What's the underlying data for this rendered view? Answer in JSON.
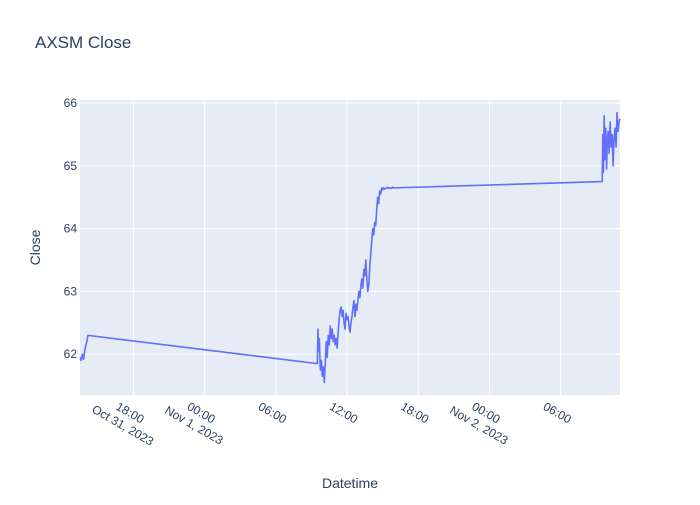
{
  "chart_data": {
    "type": "line",
    "title": "AXSM Close",
    "xlabel": "Datetime",
    "ylabel": "Close",
    "ylim": [
      61.35,
      66.05
    ],
    "xlim": [
      "2023-10-31 13:30",
      "2023-11-02 11:00"
    ],
    "grid": true,
    "colors": {
      "plot_bg": "#e5ecf6",
      "line": "#636efa",
      "text": "#2a3f5f",
      "grid": "#ffffff"
    },
    "yticks": [
      62,
      63,
      64,
      65,
      66
    ],
    "xticks": [
      {
        "t": "2023-10-31 18:00",
        "label": [
          "18:00",
          "Oct 31, 2023"
        ]
      },
      {
        "t": "2023-11-01 00:00",
        "label": [
          "00:00",
          "Nov 1, 2023"
        ]
      },
      {
        "t": "2023-11-01 06:00",
        "label": [
          "06:00"
        ]
      },
      {
        "t": "2023-11-01 12:00",
        "label": [
          "12:00"
        ]
      },
      {
        "t": "2023-11-01 18:00",
        "label": [
          "18:00"
        ]
      },
      {
        "t": "2023-11-02 00:00",
        "label": [
          "00:00",
          "Nov 2, 2023"
        ]
      },
      {
        "t": "2023-11-02 06:00",
        "label": [
          "06:00"
        ]
      }
    ],
    "series": [
      {
        "x": [
          "2023-10-31 13:30",
          "2023-10-31 13:36",
          "2023-10-31 13:42",
          "2023-10-31 13:48",
          "2023-10-31 13:54",
          "2023-10-31 14:00",
          "2023-10-31 14:05",
          "2023-10-31 14:10",
          "2023-11-01 09:30",
          "2023-11-01 09:33",
          "2023-11-01 09:36",
          "2023-11-01 09:40",
          "2023-11-01 09:45",
          "2023-11-01 09:50",
          "2023-11-01 09:55",
          "2023-11-01 10:00",
          "2023-11-01 10:05",
          "2023-11-01 10:10",
          "2023-11-01 10:15",
          "2023-11-01 10:20",
          "2023-11-01 10:25",
          "2023-11-01 10:30",
          "2023-11-01 10:35",
          "2023-11-01 10:40",
          "2023-11-01 10:45",
          "2023-11-01 10:50",
          "2023-11-01 10:55",
          "2023-11-01 11:00",
          "2023-11-01 11:05",
          "2023-11-01 11:10",
          "2023-11-01 11:15",
          "2023-11-01 11:20",
          "2023-11-01 11:25",
          "2023-11-01 11:30",
          "2023-11-01 11:35",
          "2023-11-01 11:40",
          "2023-11-01 11:45",
          "2023-11-01 11:50",
          "2023-11-01 11:55",
          "2023-11-01 12:00",
          "2023-11-01 12:05",
          "2023-11-01 12:10",
          "2023-11-01 12:15",
          "2023-11-01 12:20",
          "2023-11-01 12:25",
          "2023-11-01 12:30",
          "2023-11-01 12:35",
          "2023-11-01 12:40",
          "2023-11-01 12:45",
          "2023-11-01 12:50",
          "2023-11-01 12:55",
          "2023-11-01 13:00",
          "2023-11-01 13:05",
          "2023-11-01 13:10",
          "2023-11-01 13:15",
          "2023-11-01 13:20",
          "2023-11-01 13:25",
          "2023-11-01 13:30",
          "2023-11-01 13:35",
          "2023-11-01 13:40",
          "2023-11-01 13:45",
          "2023-11-01 13:50",
          "2023-11-01 13:55",
          "2023-11-01 14:00",
          "2023-11-01 14:05",
          "2023-11-01 14:10",
          "2023-11-01 14:15",
          "2023-11-01 14:20",
          "2023-11-01 14:25",
          "2023-11-01 14:30",
          "2023-11-01 14:35",
          "2023-11-01 14:40",
          "2023-11-01 14:45",
          "2023-11-01 14:50",
          "2023-11-01 14:55",
          "2023-11-01 15:00",
          "2023-11-01 15:05",
          "2023-11-01 15:10",
          "2023-11-01 15:15",
          "2023-11-01 15:20",
          "2023-11-01 15:25",
          "2023-11-01 15:30",
          "2023-11-01 15:35",
          "2023-11-01 15:40",
          "2023-11-01 15:45",
          "2023-11-01 15:50",
          "2023-11-01 15:55",
          "2023-11-01 16:00",
          "2023-11-02 09:30",
          "2023-11-02 09:33",
          "2023-11-02 09:36",
          "2023-11-02 09:40",
          "2023-11-02 09:44",
          "2023-11-02 09:48",
          "2023-11-02 09:52",
          "2023-11-02 09:56",
          "2023-11-02 10:00",
          "2023-11-02 10:05",
          "2023-11-02 10:10",
          "2023-11-02 10:15",
          "2023-11-02 10:20",
          "2023-11-02 10:25",
          "2023-11-02 10:30",
          "2023-11-02 10:35",
          "2023-11-02 10:40",
          "2023-11-02 10:45",
          "2023-11-02 10:50",
          "2023-11-02 10:55",
          "2023-11-02 11:00"
        ],
        "y": [
          61.95,
          61.9,
          62.0,
          61.92,
          62.05,
          62.15,
          62.2,
          62.3,
          61.85,
          62.4,
          62.05,
          62.25,
          61.75,
          61.9,
          61.65,
          61.8,
          61.55,
          61.85,
          62.2,
          61.95,
          62.3,
          62.15,
          62.45,
          62.25,
          62.4,
          62.2,
          62.3,
          62.15,
          62.25,
          62.1,
          62.35,
          62.55,
          62.7,
          62.75,
          62.6,
          62.7,
          62.5,
          62.4,
          62.65,
          62.55,
          62.6,
          62.45,
          62.35,
          62.5,
          62.6,
          62.75,
          62.85,
          62.6,
          62.8,
          62.7,
          62.85,
          63.0,
          62.9,
          63.1,
          63.2,
          63.05,
          63.35,
          63.25,
          63.5,
          63.2,
          63.0,
          63.1,
          63.4,
          63.6,
          63.8,
          64.0,
          63.9,
          64.1,
          64.05,
          64.3,
          64.5,
          64.4,
          64.6,
          64.55,
          64.65,
          64.62,
          64.65,
          64.63,
          64.64,
          64.65,
          64.66,
          64.64,
          64.65,
          64.65,
          64.64,
          64.66,
          64.65,
          64.65,
          64.75,
          65.5,
          64.9,
          65.8,
          65.1,
          65.6,
          64.95,
          65.4,
          65.55,
          65.2,
          65.7,
          65.3,
          65.5,
          65.0,
          65.45,
          65.6,
          65.3,
          65.85,
          65.55,
          65.7,
          65.75
        ]
      }
    ]
  }
}
